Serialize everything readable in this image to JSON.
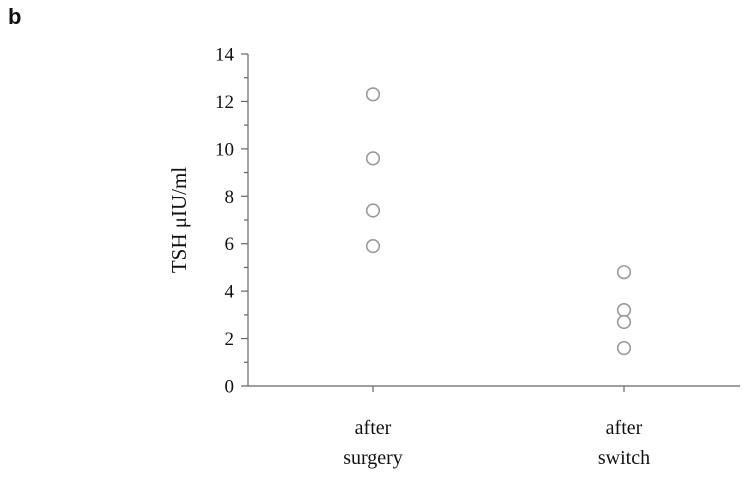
{
  "panel_label": "b",
  "chart_data": {
    "type": "scatter",
    "title": "",
    "xlabel": "",
    "ylabel": "TSH μIU/ml",
    "ylim": [
      0,
      14
    ],
    "yticks": [
      0,
      2,
      4,
      6,
      8,
      10,
      12,
      14
    ],
    "categories": [
      [
        "after",
        "surgery"
      ],
      [
        "after",
        "switch"
      ]
    ],
    "series": [
      {
        "category_index": 0,
        "values": [
          12.3,
          9.6,
          7.4,
          5.9
        ]
      },
      {
        "category_index": 1,
        "values": [
          4.8,
          3.2,
          2.7,
          1.6
        ]
      }
    ],
    "grid": false,
    "colors": {
      "marker_stroke": "#9a9a9a",
      "axis": "#666666"
    }
  }
}
